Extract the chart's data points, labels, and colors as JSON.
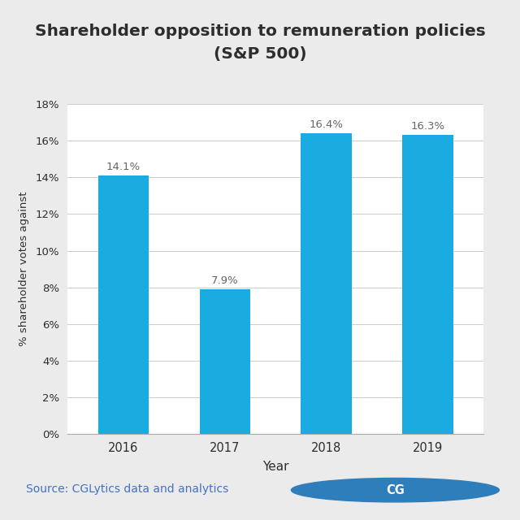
{
  "title_line1": "Shareholder opposition to remuneration policies",
  "title_line2": "(S&P 500)",
  "categories": [
    "2016",
    "2017",
    "2018",
    "2019"
  ],
  "values": [
    14.1,
    7.9,
    16.4,
    16.3
  ],
  "bar_color": "#1AABE0",
  "xlabel": "Year",
  "ylabel": "% shareholder votes against",
  "ylim": [
    0,
    18
  ],
  "yticks": [
    0,
    2,
    4,
    6,
    8,
    10,
    12,
    14,
    16,
    18
  ],
  "ytick_labels": [
    "0%",
    "2%",
    "4%",
    "6%",
    "8%",
    "10%",
    "12%",
    "14%",
    "16%",
    "18%"
  ],
  "bar_labels": [
    "14.1%",
    "7.9%",
    "16.4%",
    "16.3%"
  ],
  "source_text": "Source: CGLytics data and analytics",
  "source_color": "#4472C4",
  "outer_bg": "#EBEBEB",
  "inner_bg": "#FFFFFF",
  "chart_panel_bg": "#FFFFFF",
  "title_color": "#2D2D2D",
  "axis_label_color": "#2D2D2D",
  "tick_color": "#2D2D2D",
  "grid_color": "#CCCCCC",
  "annotation_color": "#666666",
  "logo_circle_color": "#2E7EBC",
  "logo_text_CG": "#FFFFFF",
  "logo_text_Lytics": "#555555"
}
